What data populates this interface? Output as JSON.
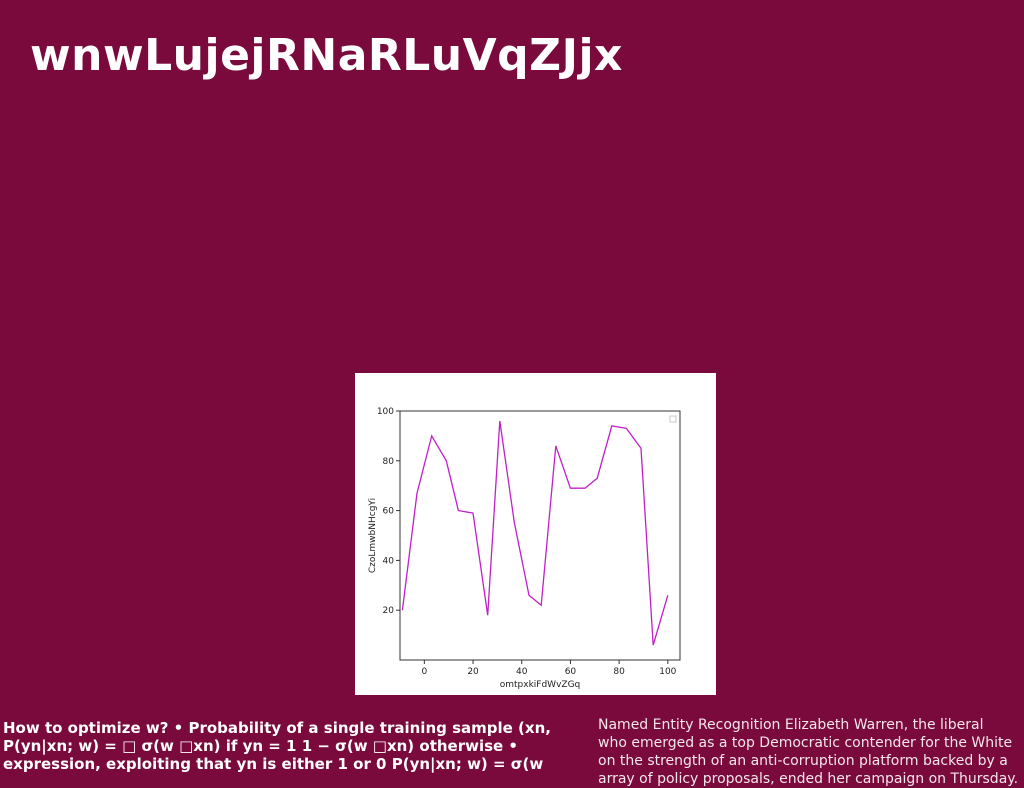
{
  "slide": {
    "title": "wnwLujejRNaRLuVqZJjx",
    "left_lines": [
      "How to optimize w? • Probability of a single training sample (xn,",
      "P(yn|xn; w) = □ σ(w □xn) if yn = 1 1 − σ(w □xn) otherwise •",
      "expression, exploiting that yn is either 1 or 0 P(yn|xn; w) = σ(w"
    ],
    "right_lines": [
      "Named Entity Recognition Elizabeth Warren, the liberal",
      "who emerged as a top Democratic contender for the White",
      "on the strength of an anti-corruption platform backed by a",
      "array of policy proposals, ended her campaign on Thursday."
    ]
  },
  "chart_data": {
    "type": "line",
    "xlabel": "omtpxkiFdWvZGq",
    "ylabel": "CzoLmwbNHcgYi",
    "xlim": [
      -10,
      105
    ],
    "ylim": [
      0,
      100
    ],
    "xticks": [
      0,
      20,
      40,
      60,
      80,
      100
    ],
    "yticks": [
      20,
      40,
      60,
      80,
      100
    ],
    "line_color": "#c020c8",
    "legend": "top-right",
    "series": [
      {
        "x": [
          -9,
          -3,
          3,
          9,
          14,
          20,
          26,
          31,
          37,
          43,
          48,
          54,
          60,
          66,
          71,
          77,
          83,
          89,
          94,
          100
        ],
        "y": [
          20,
          67,
          90,
          80,
          60,
          59,
          18,
          96,
          55,
          26,
          22,
          86,
          69,
          69,
          73,
          94,
          93,
          85,
          6,
          26
        ]
      }
    ]
  }
}
